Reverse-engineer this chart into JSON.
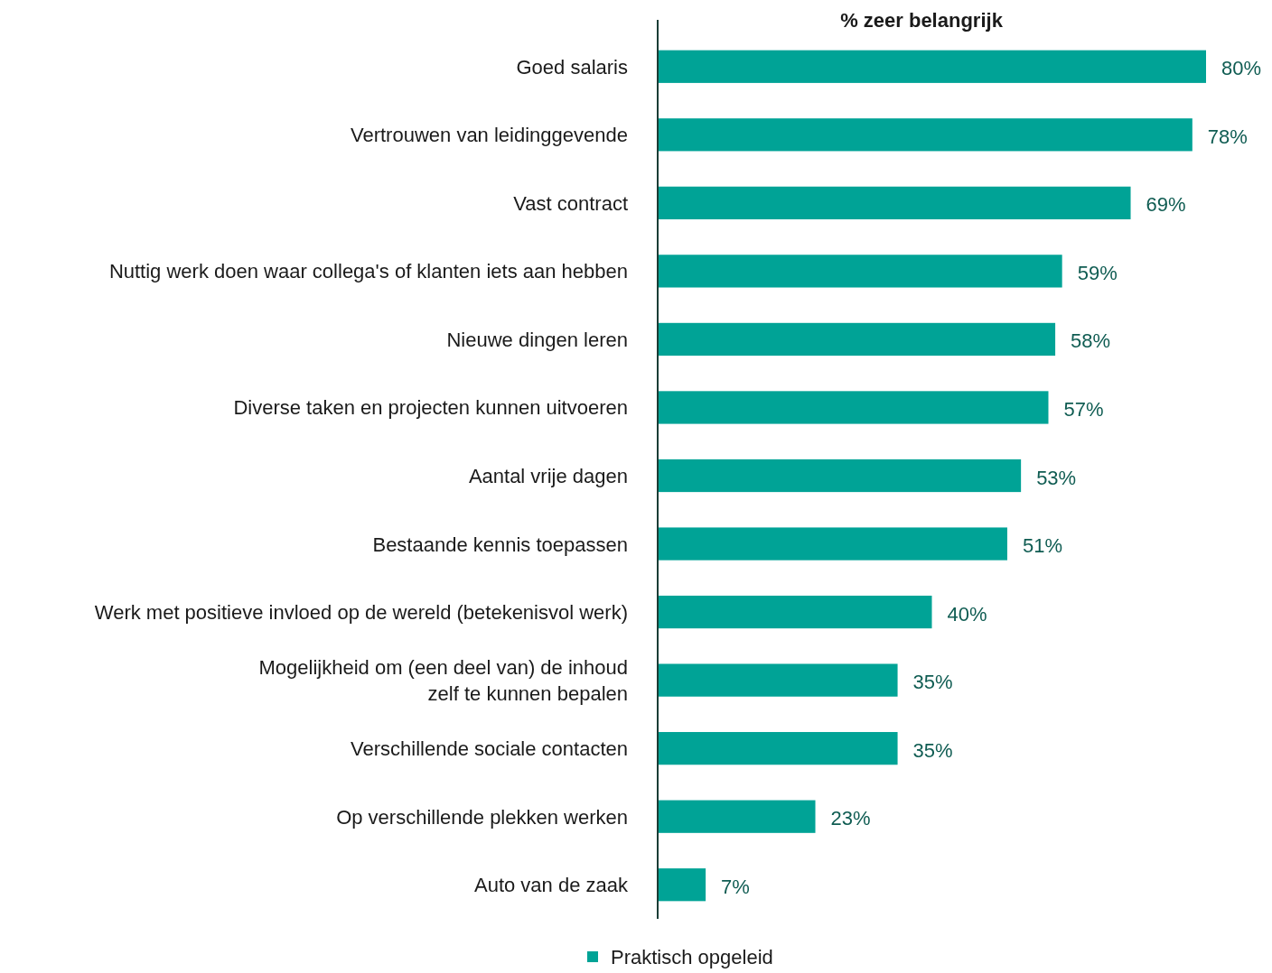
{
  "chart_data": {
    "type": "bar",
    "orientation": "horizontal",
    "title": "% zeer belangrijk",
    "categories": [
      "Goed salaris",
      "Vertrouwen van leidinggevende",
      "Vast contract",
      "Nuttig werk doen waar collega's of klanten iets aan hebben",
      "Nieuwe dingen leren",
      "Diverse taken en projecten kunnen uitvoeren",
      "Aantal vrije dagen",
      "Bestaande kennis toepassen",
      "Werk met positieve invloed op de wereld (betekenisvol werk)",
      "Mogelijkheid om (een deel van) de inhoud\nzelf te kunnen bepalen",
      "Verschillende sociale contacten",
      "Op verschillende plekken werken",
      "Auto van de zaak"
    ],
    "series": [
      {
        "name": "Praktisch opgeleid",
        "color": "#00a396",
        "values": [
          80,
          78,
          69,
          59,
          58,
          57,
          53,
          51,
          40,
          35,
          35,
          23,
          7
        ],
        "value_labels": [
          "80%",
          "78%",
          "69%",
          "59%",
          "58%",
          "57%",
          "53%",
          "51%",
          "40%",
          "35%",
          "35%",
          "23%",
          "7%"
        ]
      }
    ],
    "legend": "bottom"
  }
}
